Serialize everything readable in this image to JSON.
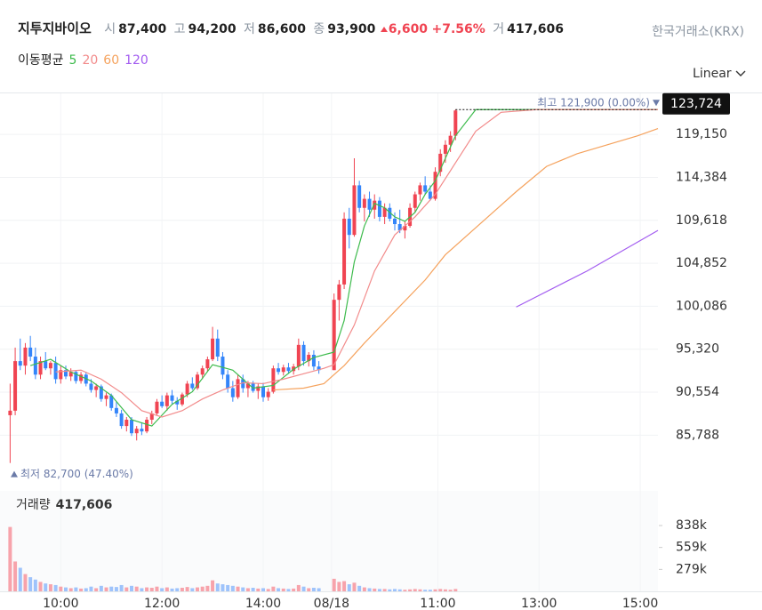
{
  "header": {
    "title": "지투지바이오",
    "open_label": "시",
    "open": "87,400",
    "high_label": "고",
    "high": "94,200",
    "low_label": "저",
    "low": "86,600",
    "close_label": "종",
    "close": "93,900",
    "change": "6,600",
    "change_rate": "+7.56%",
    "volume_label": "거",
    "volume": "417,606",
    "exchange": "한국거래소(KRX)",
    "ma_title": "이동평균",
    "scale": "Linear"
  },
  "chart_data": {
    "type": "candlestick",
    "x": [
      0,
      1,
      2,
      3,
      4,
      5,
      6,
      7,
      8,
      9,
      10,
      11,
      12,
      13,
      14,
      15,
      16,
      17,
      18,
      19,
      20,
      21,
      22,
      23,
      24,
      25,
      26,
      27,
      28,
      29,
      30,
      31,
      32,
      33,
      34,
      35,
      36,
      37,
      38,
      39,
      40,
      41,
      42,
      43,
      44,
      45,
      46,
      47,
      48,
      49,
      50,
      51,
      52,
      53,
      54,
      55,
      56,
      57,
      58,
      59,
      60,
      61,
      64,
      65,
      66,
      67,
      68,
      69,
      70,
      71,
      72,
      73,
      74,
      75,
      76,
      77,
      78,
      79,
      80,
      81,
      82,
      83,
      84,
      85,
      86,
      87,
      88
    ],
    "open": [
      88000,
      88500,
      94000,
      93500,
      95500,
      94500,
      92500,
      94000,
      93200,
      93800,
      92000,
      93000,
      92300,
      92800,
      91800,
      92500,
      91500,
      90800,
      91200,
      89800,
      90200,
      88800,
      88200,
      86800,
      87500,
      86000,
      86500,
      86200,
      87500,
      88200,
      89500,
      89000,
      90200,
      89600,
      89200,
      90300,
      91500,
      91000,
      92500,
      93200,
      94200,
      96500,
      94500,
      92500,
      91000,
      90000,
      92000,
      91000,
      91500,
      90700,
      91200,
      90000,
      90600,
      93200,
      92800,
      93300,
      92900,
      93400,
      95800,
      94000,
      94700,
      93400,
      93000,
      100800,
      102500,
      109800,
      108000,
      113500,
      111000,
      112000,
      110800,
      111800,
      110000,
      111000,
      109800,
      109200,
      108500,
      109000,
      111000,
      112500,
      113500,
      112800,
      112000,
      115000,
      117000,
      118000,
      119000
    ],
    "high": [
      91500,
      95500,
      96500,
      96000,
      96800,
      95500,
      94500,
      95000,
      94000,
      94500,
      93500,
      93500,
      93200,
      93000,
      92800,
      92800,
      92000,
      91500,
      91400,
      90500,
      90400,
      89500,
      88600,
      87800,
      87800,
      86800,
      87200,
      87800,
      88500,
      89800,
      90200,
      90500,
      90800,
      90000,
      90500,
      91800,
      92200,
      92800,
      93500,
      94500,
      97800,
      97500,
      95000,
      93000,
      91800,
      92500,
      92500,
      91800,
      91800,
      91500,
      91600,
      91000,
      93500,
      93800,
      93600,
      93800,
      93700,
      96500,
      96200,
      95000,
      95200,
      94000,
      101500,
      103000,
      110500,
      111000,
      116500,
      114000,
      112500,
      112800,
      112500,
      112200,
      111500,
      111500,
      110500,
      110800,
      109500,
      111500,
      112800,
      113800,
      114500,
      113500,
      115500,
      117500,
      118500,
      119500,
      121900
    ],
    "low": [
      82700,
      88000,
      93000,
      92500,
      94000,
      92000,
      92000,
      93000,
      92500,
      91500,
      91500,
      92000,
      91800,
      91500,
      91500,
      91200,
      90500,
      90000,
      89500,
      89000,
      88500,
      87800,
      86500,
      86200,
      85700,
      85200,
      85800,
      86000,
      87000,
      88000,
      88800,
      88500,
      89200,
      88600,
      89000,
      90000,
      90800,
      90800,
      92000,
      92800,
      94000,
      94000,
      92000,
      90500,
      89500,
      89800,
      90500,
      90000,
      90500,
      89800,
      89500,
      89600,
      90400,
      92500,
      92400,
      92600,
      92500,
      93000,
      93500,
      93400,
      93000,
      92600,
      93000,
      98500,
      102000,
      106500,
      107800,
      110500,
      109500,
      110000,
      109800,
      109500,
      109200,
      109500,
      108500,
      108200,
      107600,
      108800,
      110500,
      111800,
      112500,
      111800,
      111800,
      114500,
      116000,
      117200,
      118500
    ],
    "close": [
      88500,
      94000,
      93500,
      95500,
      94500,
      92500,
      94000,
      93200,
      93800,
      92000,
      93000,
      92300,
      92800,
      91800,
      92500,
      91500,
      90800,
      91200,
      89800,
      90200,
      88800,
      88200,
      86800,
      87500,
      86000,
      86500,
      86200,
      87500,
      88200,
      89500,
      89000,
      90200,
      89600,
      89200,
      90300,
      91500,
      91000,
      92500,
      93200,
      94200,
      96500,
      94500,
      92500,
      91000,
      90000,
      92000,
      91000,
      91500,
      90700,
      91200,
      90000,
      90600,
      93200,
      92800,
      93300,
      92900,
      93400,
      95800,
      94000,
      94700,
      93400,
      93000,
      100800,
      102500,
      109800,
      108000,
      113500,
      111000,
      112000,
      110800,
      111800,
      110000,
      111000,
      109800,
      109200,
      108500,
      109000,
      111000,
      112500,
      113500,
      112800,
      112000,
      115000,
      117000,
      118000,
      119000,
      121800
    ],
    "volume": [
      820000,
      380000,
      300000,
      220000,
      180000,
      150000,
      120000,
      100000,
      90000,
      80000,
      60000,
      50000,
      40000,
      50000,
      35000,
      40000,
      60000,
      40000,
      70000,
      50000,
      60000,
      55000,
      80000,
      50000,
      70000,
      60000,
      40000,
      50000,
      45000,
      60000,
      40000,
      50000,
      35000,
      40000,
      45000,
      55000,
      40000,
      50000,
      60000,
      70000,
      140000,
      100000,
      90000,
      80000,
      70000,
      60000,
      50000,
      40000,
      45000,
      35000,
      40000,
      30000,
      60000,
      40000,
      35000,
      30000,
      35000,
      80000,
      60000,
      40000,
      45000,
      40000,
      160000,
      120000,
      130000,
      90000,
      110000,
      70000,
      50000,
      40000,
      35000,
      30000,
      30000,
      25000,
      30000,
      25000,
      20000,
      25000,
      30000,
      25000,
      20000,
      20000,
      25000,
      30000,
      25000,
      20000,
      30000
    ],
    "up_color": "#f04452",
    "down_color": "#3485fa",
    "up_volume_color": "#f7a3ab",
    "down_volume_color": "#9ec3fb",
    "xlim": [
      -2,
      128
    ],
    "xticks": [
      {
        "value": 10,
        "label": "10:00"
      },
      {
        "value": 30,
        "label": "12:00"
      },
      {
        "value": 50,
        "label": "14:00"
      },
      {
        "value": 63.5,
        "label": "08/18"
      },
      {
        "value": 84.5,
        "label": "11:00"
      },
      {
        "value": 104.5,
        "label": "13:00"
      },
      {
        "value": 124.5,
        "label": "15:00"
      }
    ],
    "ylim": [
      80300,
      123700
    ],
    "yticks": [
      {
        "value": 119150,
        "label": "119,150"
      },
      {
        "value": 114384,
        "label": "114,384"
      },
      {
        "value": 109618,
        "label": "109,618"
      },
      {
        "value": 104852,
        "label": "104,852"
      },
      {
        "value": 100086,
        "label": "100,086"
      },
      {
        "value": 95320,
        "label": "95,320"
      },
      {
        "value": 90554,
        "label": "90,554"
      },
      {
        "value": 85788,
        "label": "85,788"
      }
    ],
    "grid": true,
    "moving_averages": [
      {
        "name": "5",
        "color": "#3dbb4c",
        "x": [
          4,
          8,
          12,
          16,
          20,
          24,
          28,
          32,
          36,
          40,
          44,
          48,
          52,
          56,
          60,
          64,
          66,
          68,
          70,
          72,
          74,
          76,
          78,
          80,
          82,
          84,
          86,
          88,
          92,
          128
        ],
        "values": [
          93500,
          94200,
          92800,
          91800,
          90200,
          87500,
          86800,
          89200,
          90600,
          93600,
          93000,
          91000,
          91300,
          93100,
          94400,
          95000,
          98500,
          105000,
          109000,
          111500,
          111000,
          110000,
          109500,
          110500,
          112500,
          114000,
          116500,
          119000,
          121900,
          121900
        ]
      },
      {
        "name": "20",
        "color": "#f28b8b",
        "x": [
          9,
          14,
          18,
          22,
          26,
          30,
          34,
          38,
          42,
          46,
          50,
          54,
          58,
          62,
          64,
          68,
          72,
          76,
          80,
          84,
          88,
          92,
          97,
          104,
          128
        ],
        "values": [
          92800,
          93000,
          92000,
          90500,
          88500,
          87800,
          88500,
          89800,
          90800,
          91600,
          91500,
          92000,
          92600,
          93200,
          93600,
          98000,
          104000,
          108000,
          110000,
          112500,
          116000,
          119500,
          121600,
          121900,
          121900
        ]
      },
      {
        "name": "60",
        "color": "#f5a25d",
        "x": [
          52,
          58,
          62,
          66,
          70,
          76,
          82,
          86,
          94,
          100,
          106,
          112,
          118,
          124,
          128
        ],
        "values": [
          90800,
          91000,
          91500,
          93500,
          96000,
          99500,
          103000,
          105800,
          109800,
          112800,
          115600,
          117000,
          118000,
          119000,
          119800
        ]
      },
      {
        "name": "120",
        "color": "#a35df0",
        "x": [
          100,
          114,
          128
        ],
        "values": [
          100000,
          104000,
          108500
        ]
      }
    ],
    "max_line": {
      "value": 121900,
      "label": "최고 121,900 (0.00%)"
    },
    "min_marker": {
      "value": 82700,
      "label": "최저 82,700 (47.40%)"
    },
    "cursor_tag": {
      "value": 123724,
      "label": "123,724"
    },
    "volume_title": "거래량",
    "volume_value": "417,606",
    "volume_ylim": [
      0,
      1280000
    ],
    "volume_yticks": [
      {
        "value": 838000,
        "label": "838k"
      },
      {
        "value": 559000,
        "label": "559k"
      },
      {
        "value": 279000,
        "label": "279k"
      }
    ]
  }
}
